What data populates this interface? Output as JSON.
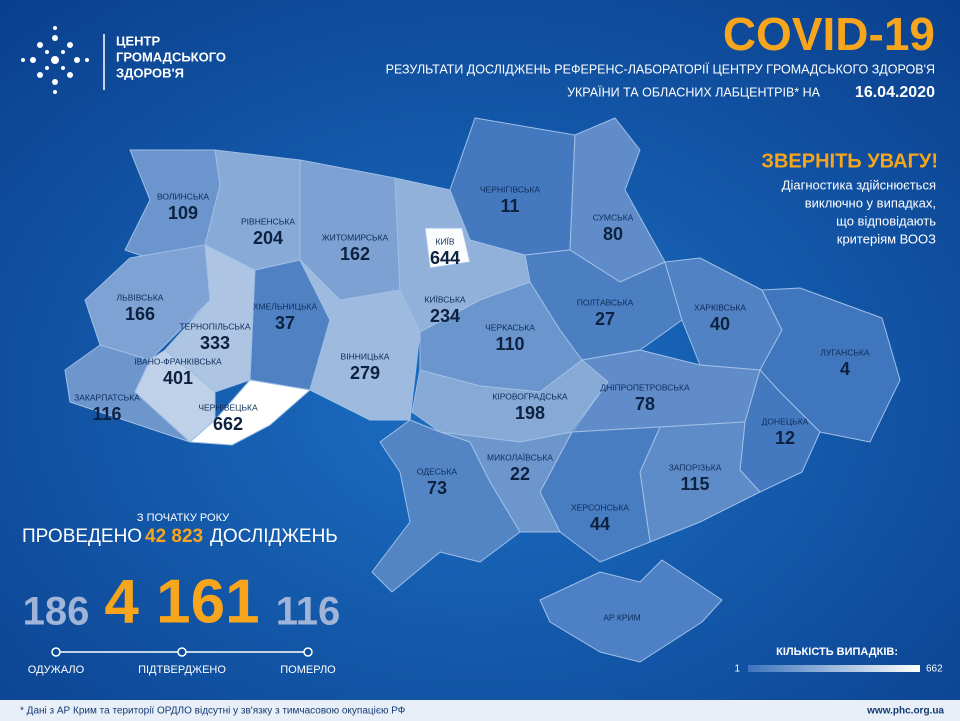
{
  "header": {
    "org": [
      "ЦЕНТР",
      "ГРОМАДСЬКОГО",
      "ЗДОРОВ'Я"
    ],
    "title": "COVID-19",
    "subtitle_1": "РЕЗУЛЬТАТИ ДОСЛІДЖЕНЬ РЕФЕРЕНС-ЛАБОРАТОРІЇ ЦЕНТРУ ГРОМАДСЬКОГО ЗДОРОВ'Я",
    "subtitle_2": "УКРАЇНИ ТА ОБЛАСНИХ ЛАБЦЕНТРІВ* НА",
    "date": "16.04.2020"
  },
  "notice": {
    "title": "ЗВЕРНІТЬ УВАГУ!",
    "lines": [
      "Діагностика здійснюється",
      "виключно у випадках,",
      "що відповідають",
      "критеріям ВООЗ"
    ]
  },
  "regions": [
    {
      "name": "ВОЛИНСЬКА",
      "cases": 109
    },
    {
      "name": "РІВНЕНСЬКА",
      "cases": 204
    },
    {
      "name": "ЖИТОМИРСЬКА",
      "cases": 162
    },
    {
      "name": "КИЇВСЬКА",
      "cases": 234
    },
    {
      "name": "КИЇВ",
      "cases": 644
    },
    {
      "name": "ЧЕРНІГІВСЬКА",
      "cases": 11
    },
    {
      "name": "СУМСЬКА",
      "cases": 80
    },
    {
      "name": "ЛЬВІВСЬКА",
      "cases": 166
    },
    {
      "name": "ТЕРНОПІЛЬСЬКА",
      "cases": 333
    },
    {
      "name": "ХМЕЛЬНИЦЬКА",
      "cases": 37
    },
    {
      "name": "ВІННИЦЬКА",
      "cases": 279
    },
    {
      "name": "ЧЕРКАСЬКА",
      "cases": 110
    },
    {
      "name": "ПОЛТАВСЬКА",
      "cases": 27
    },
    {
      "name": "ХАРКІВСЬКА",
      "cases": 40
    },
    {
      "name": "ЛУГАНСЬКА",
      "cases": 4
    },
    {
      "name": "ІВАНО-ФРАНКІВСЬКА",
      "cases": 401
    },
    {
      "name": "ЗАКАРПАТСЬКА",
      "cases": 116
    },
    {
      "name": "ЧЕРНІВЕЦЬКА",
      "cases": 662
    },
    {
      "name": "КІРОВОГРАДСЬКА",
      "cases": 198
    },
    {
      "name": "ДНІПРОПЕТРОВСЬКА",
      "cases": 78
    },
    {
      "name": "ДОНЕЦЬКА",
      "cases": 12
    },
    {
      "name": "ОДЕСЬКА",
      "cases": 73
    },
    {
      "name": "МИКОЛАЇВСЬКА",
      "cases": 22
    },
    {
      "name": "ЗАПОРІЗЬКА",
      "cases": 115
    },
    {
      "name": "ХЕРСОНСЬКА",
      "cases": 44
    }
  ],
  "crimea": "АР КРИМ",
  "summary": {
    "since": "З ПОЧАТКУ РОКУ",
    "tested_prefix": "ПРОВЕДЕНО",
    "tested": {
      "value": 42823,
      "label": "42 823"
    },
    "tested_suffix": "ДОСЛІДЖЕНЬ",
    "recovered": 186,
    "confirmed": {
      "value": 4161,
      "label": "4 161"
    },
    "deaths": 116,
    "labels": [
      "ОДУЖАЛО",
      "ПІДТВЕРДЖЕНО",
      "ПОМЕРЛО"
    ]
  },
  "legend": {
    "title": "КІЛЬКІСТЬ ВИПАДКІВ:",
    "min": 1,
    "max": 662
  },
  "footer": {
    "note": "* Дані з АР Крим та території ОРДЛО відсутні у зв'язку з тимчасовою окупацією РФ",
    "url": "www.phc.org.ua"
  }
}
